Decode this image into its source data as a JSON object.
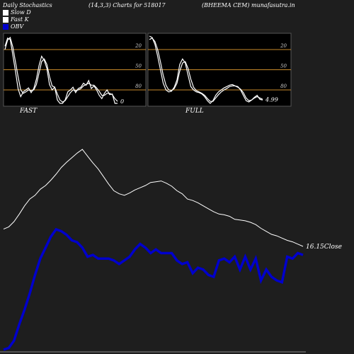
{
  "header": {
    "title": "Daily Stochastics",
    "params": "(14,3,3) Charts for 518017",
    "company": "(BHEEMA CEM) munafasutra.in"
  },
  "legend": [
    {
      "label": "Slow  D",
      "color": "#ffffff"
    },
    {
      "label": "Fast K",
      "color": "#ffffff"
    },
    {
      "label": "OBV",
      "color": "#0000cc"
    }
  ],
  "colors": {
    "background": "#1e1e1e",
    "panel_bg": "#000000",
    "level_line": "#c88a2a",
    "stoch_line": "#ffffff",
    "price_line": "#ffffff",
    "obv_line": "#0000cc"
  },
  "chart_data": [
    {
      "type": "line",
      "panel": "FAST",
      "ylim": [
        0,
        100
      ],
      "levels": [
        20,
        50,
        80
      ],
      "tick_labels": [
        "80",
        "50",
        "20"
      ],
      "last_value_label": "0",
      "series": [
        {
          "values": [
            85,
            97,
            95,
            72,
            48,
            22,
            10,
            17,
            20,
            23,
            16,
            22,
            36,
            56,
            70,
            64,
            52,
            28,
            20,
            24,
            5,
            0,
            0,
            5,
            17,
            20,
            24,
            16,
            22,
            24,
            30,
            27,
            34,
            22,
            26,
            20,
            12,
            7,
            15,
            20,
            13,
            14,
            0,
            0
          ]
        },
        {
          "values": [
            80,
            94,
            98,
            84,
            62,
            40,
            20,
            15,
            17,
            20,
            19,
            20,
            28,
            45,
            62,
            66,
            58,
            40,
            26,
            24,
            14,
            5,
            2,
            4,
            10,
            16,
            20,
            19,
            20,
            22,
            26,
            28,
            30,
            27,
            27,
            23,
            18,
            12,
            12,
            15,
            15,
            13,
            7,
            3
          ]
        }
      ]
    },
    {
      "type": "line",
      "panel": "FULL",
      "ylim": [
        0,
        100
      ],
      "levels": [
        20,
        50,
        80
      ],
      "tick_labels": [
        "80",
        "50",
        "20"
      ],
      "last_value_label": "4.99",
      "series": [
        {
          "values": [
            100,
            98,
            88,
            70,
            50,
            30,
            20,
            17,
            18,
            24,
            35,
            58,
            66,
            60,
            42,
            25,
            20,
            17,
            16,
            14,
            10,
            4,
            0,
            4,
            12,
            17,
            20,
            23,
            25,
            27,
            28,
            26,
            25,
            20,
            12,
            4,
            2,
            5,
            9,
            12,
            6,
            5
          ]
        },
        {
          "values": [
            95,
            97,
            92,
            80,
            62,
            42,
            27,
            20,
            19,
            22,
            30,
            48,
            60,
            62,
            52,
            36,
            24,
            19,
            17,
            15,
            12,
            7,
            3,
            3,
            8,
            13,
            17,
            20,
            22,
            25,
            26,
            26,
            24,
            21,
            16,
            8,
            4,
            5,
            8,
            10,
            8,
            6
          ]
        }
      ]
    },
    {
      "type": "line",
      "panel": "price_obv",
      "last_close_label": "16.15Close",
      "series": [
        {
          "values": [
            35,
            38,
            45,
            55,
            66,
            75,
            80,
            88,
            93,
            100,
            108,
            117,
            124,
            130,
            136,
            141,
            132,
            123,
            115,
            105,
            95,
            86,
            82,
            80,
            83,
            87,
            90,
            93,
            97,
            98,
            99,
            96,
            92,
            86,
            82,
            75,
            73,
            70,
            66,
            62,
            58,
            55,
            54,
            52,
            48,
            47,
            46,
            44,
            41,
            36,
            32,
            28,
            26,
            23,
            20,
            18,
            15,
            12
          ]
        },
        {
          "values": [
            0,
            1,
            5,
            14,
            22,
            31,
            41,
            50,
            56,
            62,
            66,
            65,
            63,
            60,
            59,
            56,
            51,
            52,
            50,
            50,
            50,
            49,
            47,
            49,
            51,
            55,
            58,
            56,
            53,
            55,
            53,
            53,
            53,
            49,
            47,
            48,
            42,
            45,
            44,
            41,
            40,
            49,
            50,
            48,
            51,
            44,
            51,
            44,
            50,
            38,
            44,
            40,
            38,
            37,
            51,
            50,
            53,
            52
          ]
        }
      ]
    }
  ],
  "panel_labels": {
    "fast": "FAST",
    "full": "FULL"
  }
}
